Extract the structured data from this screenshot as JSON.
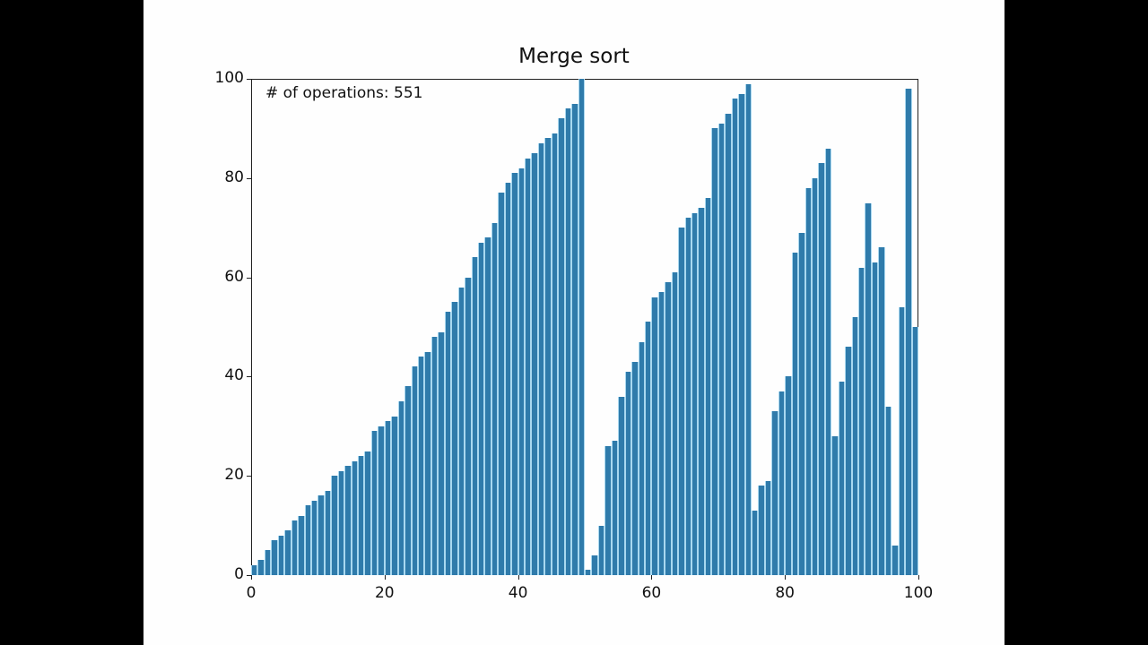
{
  "title": "Merge sort",
  "annotation": "# of operations: 551",
  "colors": {
    "bar": "#2f7bab",
    "bar_edge": "#a8d8f0",
    "background": "#fefefe",
    "letterbox": "#000000"
  },
  "chart_data": {
    "type": "bar",
    "title": "Merge sort",
    "annotations": [
      "# of operations: 551"
    ],
    "xlabel": "",
    "ylabel": "",
    "xlim": [
      0,
      100
    ],
    "ylim": [
      0,
      100
    ],
    "xticks": [
      0,
      20,
      40,
      60,
      80,
      100
    ],
    "yticks": [
      0,
      20,
      40,
      60,
      80,
      100
    ],
    "grid": false,
    "legend": null,
    "x": [
      0,
      1,
      2,
      3,
      4,
      5,
      6,
      7,
      8,
      9,
      10,
      11,
      12,
      13,
      14,
      15,
      16,
      17,
      18,
      19,
      20,
      21,
      22,
      23,
      24,
      25,
      26,
      27,
      28,
      29,
      30,
      31,
      32,
      33,
      34,
      35,
      36,
      37,
      38,
      39,
      40,
      41,
      42,
      43,
      44,
      45,
      46,
      47,
      48,
      49,
      50,
      51,
      52,
      53,
      54,
      55,
      56,
      57,
      58,
      59,
      60,
      61,
      62,
      63,
      64,
      65,
      66,
      67,
      68,
      69,
      70,
      71,
      72,
      73,
      74,
      75,
      76,
      77,
      78,
      79,
      80,
      81,
      82,
      83,
      84,
      85,
      86,
      87,
      88,
      89,
      90,
      91,
      92,
      93,
      94,
      95,
      96,
      97,
      98,
      99
    ],
    "values": [
      2,
      3,
      5,
      7,
      8,
      9,
      11,
      12,
      14,
      15,
      16,
      17,
      20,
      21,
      22,
      23,
      24,
      25,
      29,
      30,
      31,
      32,
      35,
      38,
      42,
      44,
      45,
      48,
      49,
      53,
      55,
      58,
      60,
      64,
      67,
      68,
      71,
      77,
      79,
      81,
      82,
      84,
      85,
      87,
      88,
      89,
      92,
      94,
      95,
      100,
      1,
      4,
      10,
      26,
      27,
      36,
      41,
      43,
      47,
      51,
      56,
      57,
      59,
      61,
      70,
      72,
      73,
      74,
      76,
      90,
      91,
      93,
      96,
      97,
      99,
      13,
      18,
      19,
      33,
      37,
      40,
      65,
      69,
      78,
      80,
      83,
      86,
      28,
      39,
      46,
      52,
      62,
      75,
      63,
      66,
      34,
      6,
      54,
      98,
      50
    ]
  }
}
